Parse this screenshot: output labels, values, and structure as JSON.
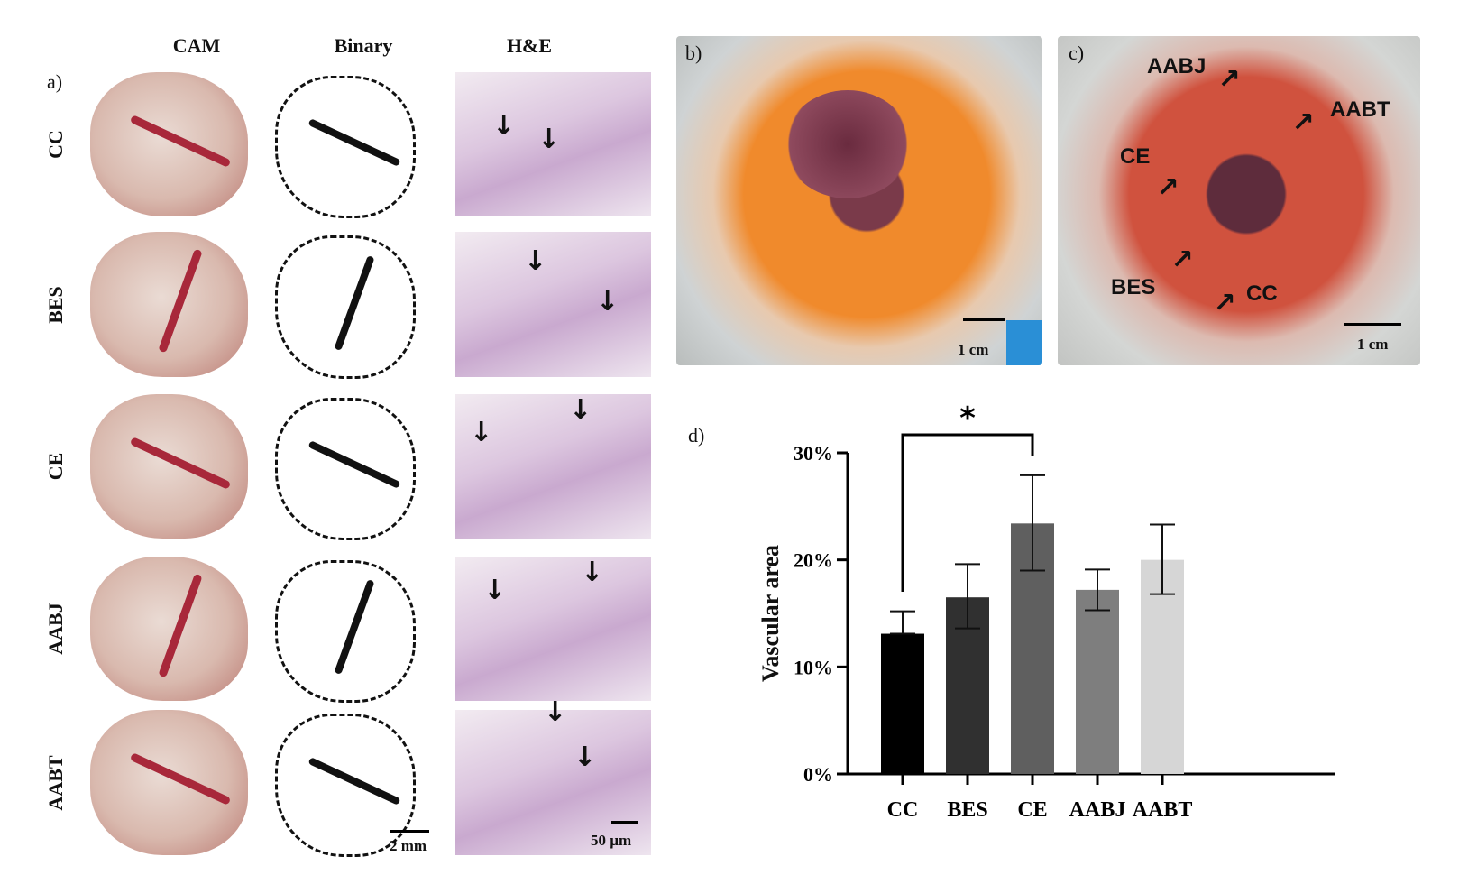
{
  "panel_a": {
    "label": "a)",
    "columns": [
      "CAM",
      "Binary",
      "H&E"
    ],
    "rows": [
      "CC",
      "BES",
      "CE",
      "AABJ",
      "AABT"
    ],
    "scale_bars": {
      "binary": "2 mm",
      "he": "50 µm"
    }
  },
  "panel_b": {
    "label": "b)",
    "scale_bar": "1 cm"
  },
  "panel_c": {
    "label": "c)",
    "scale_bar": "1 cm",
    "annotations": [
      "AABJ",
      "AABT",
      "CE",
      "BES",
      "CC"
    ]
  },
  "panel_d": {
    "label": "d)"
  },
  "chart_data": {
    "type": "bar",
    "title": "",
    "xlabel": "",
    "ylabel": "Vascular area",
    "categories": [
      "CC",
      "BES",
      "CE",
      "AABJ",
      "AABT"
    ],
    "values": [
      13.1,
      16.5,
      23.4,
      17.2,
      20.0
    ],
    "error_upper": [
      15.2,
      19.6,
      27.9,
      19.1,
      23.3
    ],
    "error_lower": [
      13.1,
      13.6,
      19.0,
      15.3,
      16.8
    ],
    "bar_colors": [
      "#000000",
      "#303030",
      "#5f5f5f",
      "#7e7e7e",
      "#d6d6d6"
    ],
    "ylim": [
      0,
      30
    ],
    "yticks": [
      "0%",
      "10%",
      "20%",
      "30%"
    ],
    "ytick_values": [
      0,
      10,
      20,
      30
    ],
    "significance": {
      "from": "CC",
      "to": "CE",
      "label": "*"
    },
    "grid": false
  }
}
